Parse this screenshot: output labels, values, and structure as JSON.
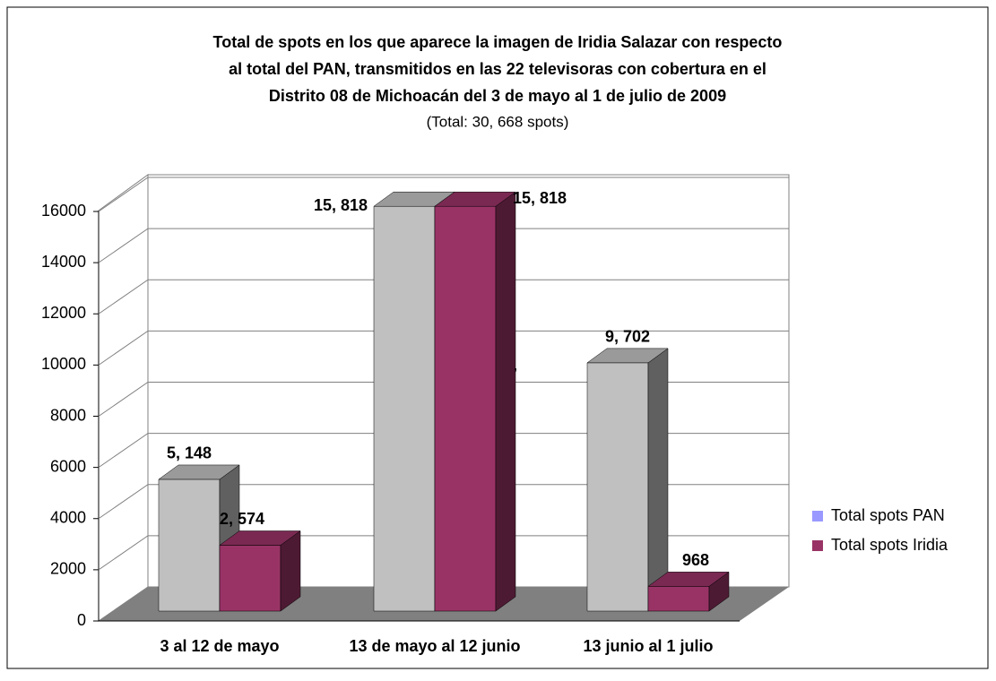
{
  "chart_data": {
    "type": "bar3d",
    "title": [
      "Total de spots en los que aparece la imagen de Iridia Salazar con respecto",
      "al total del PAN, transmitidos en las 22 televisoras con cobertura en el",
      "Distrito 08 de Michoacán del  3 de mayo al 1 de julio de 2009"
    ],
    "subtitle": "(Total: 30, 668 spots)",
    "annotation": ",",
    "categories": [
      "3 al 12 de mayo",
      "13 de mayo al 12 junio",
      "13 junio al 1 julio"
    ],
    "series": [
      {
        "name": "Total spots PAN",
        "color": "#c0c0c0",
        "legend_color": "#9999ff",
        "values": [
          5148,
          15818,
          9702
        ],
        "value_labels": [
          "5, 148",
          "15, 818",
          "9, 702"
        ]
      },
      {
        "name": "Total spots  Iridia",
        "color": "#993366",
        "legend_color": "#993366",
        "values": [
          2574,
          15818,
          968
        ],
        "value_labels": [
          "2, 574",
          "15, 818",
          "968"
        ]
      }
    ],
    "ylim": [
      0,
      16000
    ],
    "yticks": [
      0,
      2000,
      4000,
      6000,
      8000,
      10000,
      12000,
      14000,
      16000
    ],
    "grid": true,
    "legend": "right"
  }
}
